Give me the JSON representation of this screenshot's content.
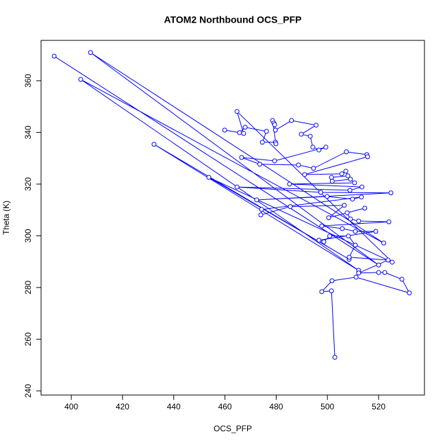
{
  "chart_data": {
    "type": "line",
    "marker": "circle",
    "color": "#0000ff",
    "title": "ATOM2 Northbound OCS_PFP",
    "x_label": "OCS_PFP",
    "y_label": "Theta (K)",
    "xlim": [
      388.2,
      537.9
    ],
    "ylim": [
      238.4,
      375.6
    ],
    "xticks": [
      400,
      420,
      440,
      460,
      480,
      500,
      520
    ],
    "yticks": [
      240,
      260,
      280,
      300,
      320,
      340,
      360
    ],
    "x": [
      393.3,
      520.0,
      407.5,
      522.0,
      403.7,
      512.2,
      432.3,
      508.5,
      453.7,
      525.3,
      464.7,
      467.3,
      459.9,
      465.7,
      467.9,
      476.2,
      474.6,
      479.7,
      479.9,
      478.6,
      479.1,
      479.4,
      479.7,
      486.0,
      495.6,
      489.8,
      493.3,
      494.3,
      496.7,
      499.4,
      479.4,
      466.5,
      473.6,
      488.7,
      494.6,
      507.4,
      515.4,
      515.7,
      491.1,
      505.6,
      507.2,
      508.0,
      501.6,
      501.9,
      509.0,
      510.6,
      485.2,
      513.5,
      508.8,
      464.7,
      497.4,
      524.8,
      472.4,
      499.9,
      509.8,
      513.3,
      474.3,
      474.0,
      485.5,
      506.6,
      500.5,
      514.6,
      507.7,
      509.0,
      512.2,
      524.0,
      497.8,
      505.8,
      510.9,
      518.9,
      496.7,
      498.6,
      500.9,
      508.2,
      510.9,
      508.5,
      523.7,
      512.2,
      512.2,
      520.0,
      522.4,
      529.1,
      532.0,
      511.2,
      501.8,
      497.8,
      501.6,
      502.9
    ],
    "values": [
      369.5,
      288.7,
      370.9,
      297.2,
      360.5,
      286.6,
      335.4,
      290.9,
      322.6,
      289.8,
      348.1,
      339.6,
      340.9,
      339.9,
      342.0,
      340.4,
      336.2,
      336.2,
      335.6,
      344.6,
      343.6,
      343.0,
      340.9,
      344.6,
      342.8,
      339.3,
      338.5,
      334.3,
      333.2,
      334.3,
      329.0,
      330.3,
      327.7,
      327.4,
      326.1,
      332.5,
      331.4,
      330.6,
      323.7,
      324.0,
      325.0,
      323.2,
      322.6,
      321.1,
      321.9,
      320.5,
      320.0,
      318.9,
      317.6,
      318.9,
      316.8,
      316.6,
      313.9,
      315.2,
      314.2,
      315.0,
      310.2,
      308.1,
      311.3,
      311.8,
      307.0,
      310.7,
      308.9,
      306.5,
      305.7,
      305.4,
      303.8,
      302.8,
      301.7,
      301.7,
      298.3,
      297.7,
      299.9,
      299.9,
      296.4,
      291.7,
      290.6,
      285.6,
      285.6,
      285.8,
      285.8,
      283.2,
      277.9,
      284.0,
      282.6,
      278.4,
      278.7,
      253.0
    ]
  }
}
